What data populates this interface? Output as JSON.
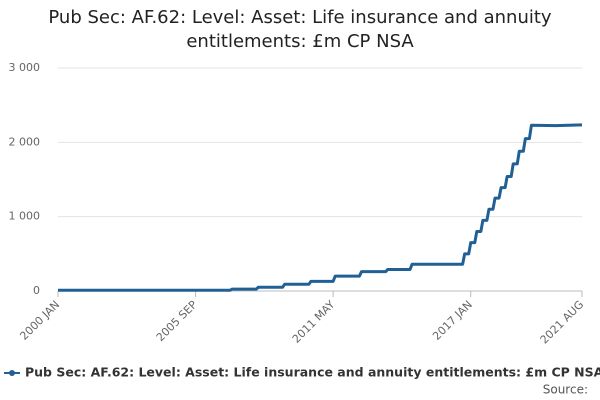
{
  "chart_data": {
    "type": "line",
    "title": "Pub Sec: AF.62: Level: Asset: Life insurance and annuity entitlements: £m CP NSA",
    "source": "Source:",
    "x": [
      "2000 JAN",
      "2007 FEB",
      "2007 MAR",
      "2008 MAR",
      "2008 APR",
      "2009 APR",
      "2009 MAY",
      "2010 MAY",
      "2010 JUN",
      "2011 MAY",
      "2011 JUN",
      "2012 JUN",
      "2012 JUL",
      "2013 JUL",
      "2013 AUG",
      "2014 JUL",
      "2014 AUG",
      "2016 SEP",
      "2016 OCT",
      "2016 DEC",
      "2017 JAN",
      "2017 MAR",
      "2017 APR",
      "2017 JUN",
      "2017 JUL",
      "2017 SEP",
      "2017 OCT",
      "2017 DEC",
      "2018 JAN",
      "2018 MAR",
      "2018 APR",
      "2018 JUN",
      "2018 JUL",
      "2018 SEP",
      "2018 OCT",
      "2018 DEC",
      "2019 JAN",
      "2019 MAR",
      "2019 APR",
      "2019 JUN",
      "2019 JUL",
      "2020 JUL",
      "2021 AUG"
    ],
    "series": [
      {
        "name": "Pub Sec: AF.62: Level: Asset: Life insurance and annuity entitlements: £m CP NSA",
        "color": "#206095",
        "values": [
          10,
          10,
          25,
          25,
          50,
          50,
          90,
          90,
          130,
          130,
          200,
          200,
          260,
          260,
          290,
          290,
          360,
          360,
          500,
          500,
          650,
          650,
          800,
          800,
          950,
          950,
          1100,
          1100,
          1250,
          1250,
          1390,
          1390,
          1540,
          1540,
          1710,
          1710,
          1880,
          1880,
          2050,
          2050,
          2230,
          2225,
          2235
        ]
      }
    ],
    "xticks": [
      "2000 JAN",
      "2005 SEP",
      "2011 MAY",
      "2017 JAN",
      "2021 AUG"
    ],
    "ylim": [
      0,
      3000
    ],
    "yticks": [
      0,
      {
        "value": 1000,
        "label": "1 000"
      },
      {
        "value": 2000,
        "label": "2 000"
      },
      {
        "value": 3000,
        "label": "3 000"
      }
    ],
    "grid": true
  }
}
